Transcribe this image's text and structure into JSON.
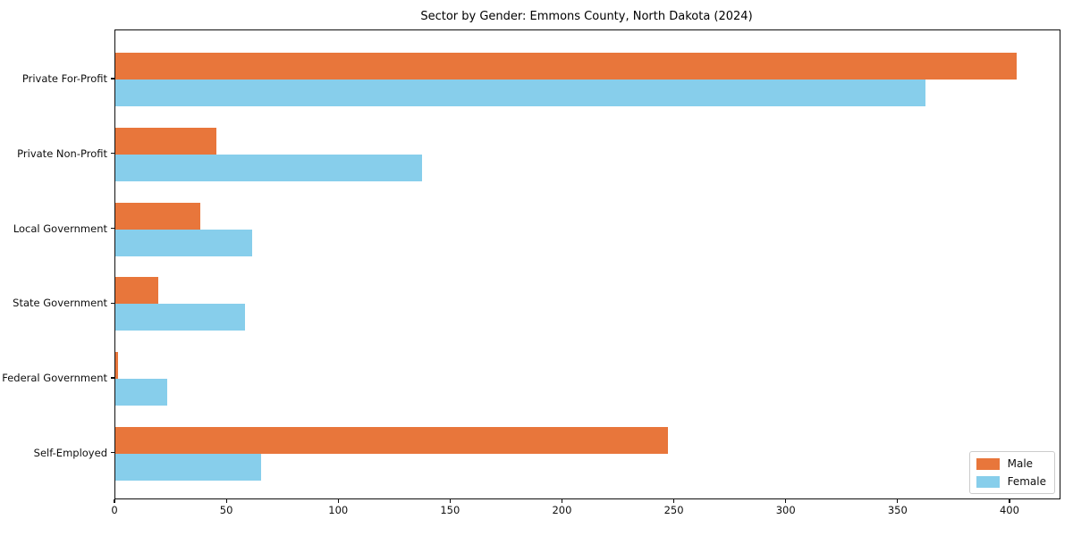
{
  "title": "Sector by Gender: Emmons County, North Dakota (2024)",
  "chart_data": {
    "type": "bar",
    "orientation": "horizontal",
    "title": "Sector by Gender: Emmons County, North Dakota (2024)",
    "categories": [
      "Private For-Profit",
      "Private Non-Profit",
      "Local Government",
      "State Government",
      "Federal Government",
      "Self-Employed"
    ],
    "series": [
      {
        "name": "Male",
        "color": "#e8763b",
        "values": [
          403,
          45,
          38,
          19,
          1,
          247
        ]
      },
      {
        "name": "Female",
        "color": "#87ceeb",
        "values": [
          362,
          137,
          61,
          58,
          23,
          65
        ]
      }
    ],
    "xticks": [
      0,
      50,
      100,
      150,
      200,
      250,
      300,
      350,
      400
    ],
    "xlim": [
      0,
      422
    ],
    "xlabel": "",
    "ylabel": "",
    "grid": false,
    "legend_position": "lower right"
  }
}
